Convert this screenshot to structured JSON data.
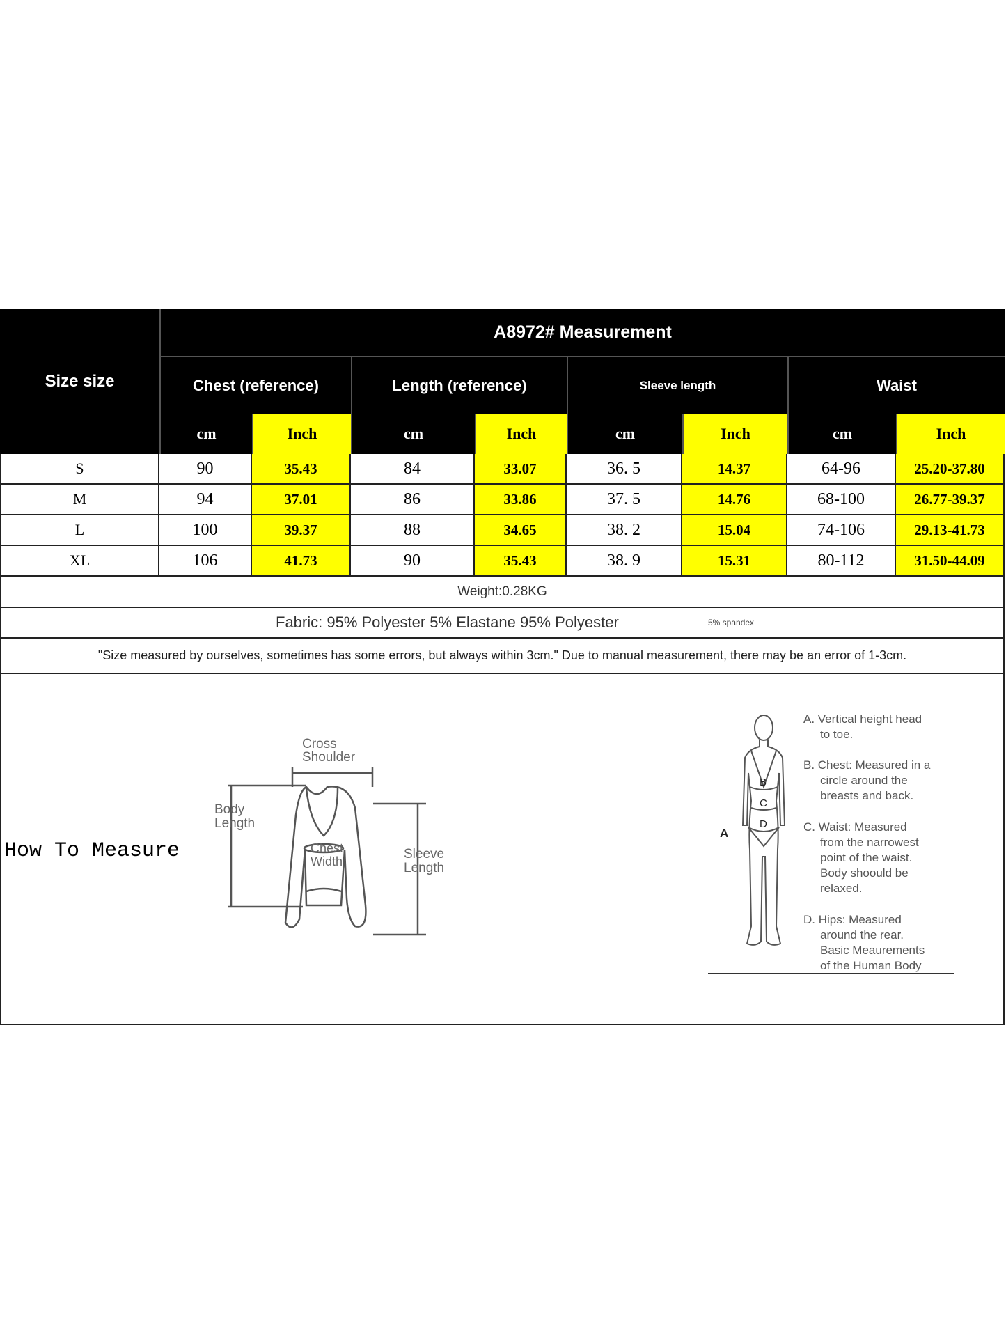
{
  "table": {
    "title": "A8972# Measurement",
    "size_header": "Size size",
    "groups": [
      {
        "label": "Chest (reference)",
        "units": [
          "cm",
          "Inch"
        ]
      },
      {
        "label": "Length (reference)",
        "units": [
          "cm",
          "Inch"
        ]
      },
      {
        "label": "Sleeve length",
        "units": [
          "cm",
          "Inch"
        ]
      },
      {
        "label": "Waist",
        "units": [
          "cm",
          "Inch"
        ]
      }
    ],
    "rows": [
      {
        "size": "S",
        "values": [
          "90",
          "35.43",
          "84",
          "33.07",
          "36. 5",
          "14.37",
          "64-96",
          "25.20-37.80"
        ]
      },
      {
        "size": "M",
        "values": [
          "94",
          "37.01",
          "86",
          "33.86",
          "37. 5",
          "14.76",
          "68-100",
          "26.77-39.37"
        ]
      },
      {
        "size": "L",
        "values": [
          "100",
          "39.37",
          "88",
          "34.65",
          "38. 2",
          "15.04",
          "74-106",
          "29.13-41.73"
        ]
      },
      {
        "size": "XL",
        "values": [
          "106",
          "41.73",
          "90",
          "35.43",
          "38. 9",
          "15.31",
          "80-112",
          "31.50-44.09"
        ]
      }
    ],
    "weight": "Weight:0.28KG",
    "fabric": "Fabric: 95% Polyester 5% Elastane 95% Polyester",
    "fabric_note": "5% spandex",
    "disclaimer": "\"Size measured by ourselves, sometimes has some errors, but always within 3cm.\" Due to manual measurement, there may be an error of 1-3cm."
  },
  "how_to": {
    "title": "How To Measure",
    "shirt_labels": {
      "cross": "Cross",
      "shoulder": "Shoulder",
      "body": "Body",
      "length": "Length",
      "chest": "Chest",
      "width": "Width",
      "sleeve": "Sleeve",
      "sleeve_length": "Length"
    },
    "body_letters": [
      "A",
      "B",
      "C",
      "D"
    ],
    "body_notes": [
      [
        "A. Vertical height head",
        "to toe."
      ],
      [
        "B. Chest: Measured in a",
        "circle around the",
        "breasts and back."
      ],
      [
        "C. Waist: Measured",
        "from the narrowest",
        "point of the waist.",
        "Body shoould be",
        "relaxed."
      ],
      [
        "D. Hips: Measured",
        "around the rear.",
        "Basic Meaurements",
        "of the Human Body"
      ]
    ]
  },
  "colors": {
    "header_bg": "#000000",
    "inch_bg": "#ffff00"
  }
}
